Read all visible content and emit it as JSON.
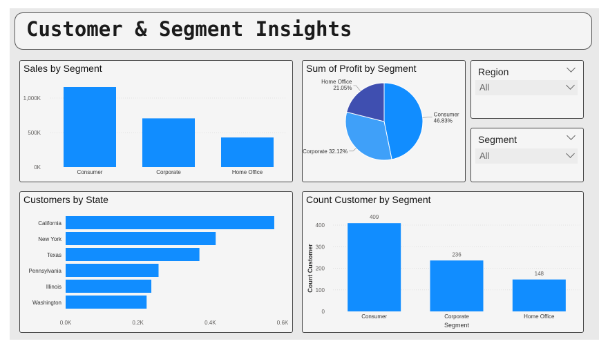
{
  "header": {
    "title": "Customer & Segment Insights"
  },
  "colors": {
    "bar": "#118dff",
    "pie": [
      "#118dff",
      "#3fa0f9",
      "#3f4fb0"
    ],
    "axis": "#605e5c"
  },
  "slicers": [
    {
      "title": "Region",
      "value": "All",
      "icon": "chevron-down-icon"
    },
    {
      "title": "Segment",
      "value": "All",
      "icon": "chevron-down-icon"
    }
  ],
  "chart_data": [
    {
      "type": "bar",
      "title": "Sales by Segment",
      "categories": [
        "Consumer",
        "Corporate",
        "Home Office"
      ],
      "values": [
        1160000,
        706000,
        429000
      ],
      "ylim": [
        0,
        1000000
      ],
      "yticks": [
        "0K",
        "500K",
        "1,000K"
      ],
      "grid": true
    },
    {
      "type": "pie",
      "title": "Sum of Profit by Segment",
      "slices": [
        {
          "label": "Consumer",
          "pct": "46.83%",
          "value": 46.83
        },
        {
          "label": "Corporate",
          "pct": "32.12%",
          "value": 32.12
        },
        {
          "label": "Home Office",
          "pct": "21.05%",
          "value": 21.05
        }
      ]
    },
    {
      "type": "bar",
      "orientation": "horizontal",
      "title": "Customers by State",
      "categories": [
        "California",
        "New York",
        "Texas",
        "Pennsylvania",
        "Illinois",
        "Washington"
      ],
      "values": [
        577,
        415,
        370,
        257,
        237,
        224
      ],
      "xlim": [
        0,
        600
      ],
      "xticks": [
        "0.0K",
        "0.2K",
        "0.4K",
        "0.6K"
      ]
    },
    {
      "type": "bar",
      "title": "Count Customer by Segment",
      "xlabel": "Segment",
      "ylabel": "Count Customer",
      "categories": [
        "Consumer",
        "Corporate",
        "Home Office"
      ],
      "values": [
        409,
        236,
        148
      ],
      "data_labels": [
        "409",
        "236",
        "148"
      ],
      "ylim": [
        0,
        400
      ],
      "yticks": [
        "0",
        "100",
        "200",
        "300",
        "400"
      ],
      "grid": true
    }
  ]
}
